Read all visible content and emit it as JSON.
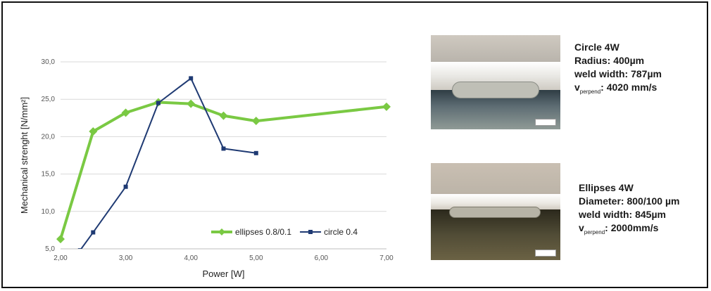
{
  "chart_data": {
    "type": "line",
    "xlabel": "Power [W]",
    "ylabel": "Mechanical strenght  [N/mm²]",
    "xlim": [
      2.0,
      7.0
    ],
    "ylim": [
      5.0,
      30.0
    ],
    "x_ticks": [
      "2,00",
      "3,00",
      "4,00",
      "5,00",
      "6,00",
      "7,00"
    ],
    "y_ticks": [
      "5,0",
      "10,0",
      "15,0",
      "20,0",
      "25,0",
      "30,0"
    ],
    "grid": "horizontal",
    "legend_position": "bottom-right",
    "series": [
      {
        "name": "ellipses 0.8/0.1",
        "color": "#7ac943",
        "marker": "diamond",
        "x": [
          2.0,
          2.5,
          3.0,
          3.5,
          4.0,
          4.5,
          5.0,
          7.0
        ],
        "y": [
          6.3,
          20.7,
          23.2,
          24.6,
          24.4,
          22.8,
          22.1,
          24.0
        ]
      },
      {
        "name": "circle 0.4",
        "color": "#1f3a73",
        "marker": "square",
        "x": [
          2.3,
          2.5,
          3.0,
          3.5,
          4.0,
          4.5,
          5.0
        ],
        "y": [
          4.8,
          7.2,
          13.3,
          24.5,
          27.8,
          18.4,
          17.8
        ]
      }
    ]
  },
  "micrographs": [
    {
      "lines": [
        "Circle 4W",
        "Radius: 400µm",
        "weld width:  787µm"
      ],
      "velocity_label": "v",
      "velocity_sub": "perpend",
      "velocity_value": ": 4020 mm/s",
      "palette": {
        "top": "#cfc9c0",
        "middle": "#b9b4ac",
        "bottom": "#5c6b72"
      }
    },
    {
      "lines": [
        "Ellipses 4W",
        "Diameter: 800/100 µm",
        "weld width: 845µm"
      ],
      "velocity_label": "v",
      "velocity_sub": "perpend",
      "velocity_value": ":  2000mm/s",
      "palette": {
        "top": "#c9bfb2",
        "middle": "#bcb4a8",
        "bottom": "#514c36"
      }
    }
  ]
}
